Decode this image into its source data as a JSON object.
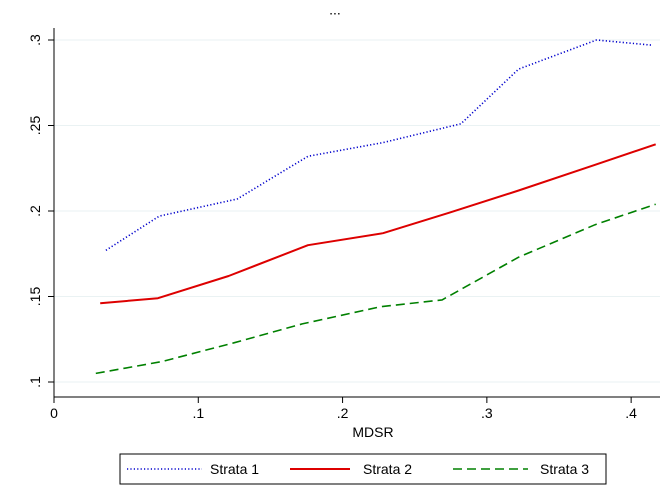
{
  "chart_data": {
    "type": "line",
    "title": "",
    "xlabel": "MDSR",
    "ylabel": "",
    "xlim": [
      0,
      0.42
    ],
    "ylim": [
      0.1,
      0.3
    ],
    "x_ticks": [
      {
        "value": 0,
        "label": "0"
      },
      {
        "value": 0.1,
        "label": ".1"
      },
      {
        "value": 0.2,
        "label": ".2"
      },
      {
        "value": 0.3,
        "label": ".3"
      },
      {
        "value": 0.4,
        "label": ".4"
      }
    ],
    "y_ticks": [
      {
        "value": 0.1,
        "label": ".1"
      },
      {
        "value": 0.15,
        "label": ".15"
      },
      {
        "value": 0.2,
        "label": ".2"
      },
      {
        "value": 0.25,
        "label": ".25"
      },
      {
        "value": 0.3,
        "label": ".3"
      }
    ],
    "grid": "horizontal",
    "legend_position": "bottom",
    "series": [
      {
        "name": "Strata 1",
        "color": "#0000cc",
        "dash": "dotted",
        "x": [
          0.036,
          0.073,
          0.127,
          0.176,
          0.228,
          0.282,
          0.322,
          0.376,
          0.414
        ],
        "y": [
          0.177,
          0.197,
          0.207,
          0.232,
          0.24,
          0.251,
          0.283,
          0.3,
          0.297
        ]
      },
      {
        "name": "Strata 2",
        "color": "#dd0000",
        "dash": "solid",
        "x": [
          0.032,
          0.072,
          0.121,
          0.176,
          0.228,
          0.274,
          0.322,
          0.375,
          0.417
        ],
        "y": [
          0.146,
          0.149,
          0.162,
          0.18,
          0.187,
          0.199,
          0.212,
          0.227,
          0.239
        ]
      },
      {
        "name": "Strata 3",
        "color": "#008000",
        "dash": "dashed",
        "x": [
          0.029,
          0.075,
          0.125,
          0.172,
          0.226,
          0.269,
          0.322,
          0.375,
          0.417
        ],
        "y": [
          0.105,
          0.112,
          0.123,
          0.134,
          0.144,
          0.148,
          0.173,
          0.192,
          0.204
        ]
      }
    ]
  },
  "header_fragment": "..."
}
